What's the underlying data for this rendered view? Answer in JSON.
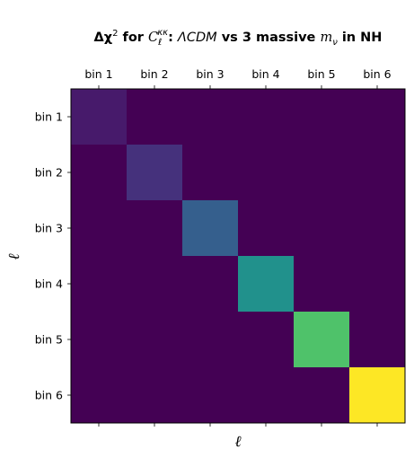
{
  "chart_data": {
    "type": "heatmap",
    "title": {
      "prefix": "Δχ",
      "exp": "2",
      "for": " for ",
      "C": "C",
      "C_sub": "ℓ",
      "C_sup": "κκ",
      "colon": ": ",
      "model": "ΛCDM",
      "vs": " vs 3 massive ",
      "m": "m",
      "m_sub": "ν",
      "tail": " in NH"
    },
    "xlabel": "ℓ",
    "ylabel": "ℓ",
    "x_categories": [
      "bin 1",
      "bin 2",
      "bin 3",
      "bin 4",
      "bin 5",
      "bin 6"
    ],
    "y_categories": [
      "bin 1",
      "bin 2",
      "bin 3",
      "bin 4",
      "bin 5",
      "bin 6"
    ],
    "x_tick_position": "top",
    "colormap": "viridis",
    "vmin": 0,
    "vmax": 1,
    "values": [
      [
        0.07,
        0,
        0,
        0,
        0,
        0
      ],
      [
        0,
        0.14,
        0,
        0,
        0,
        0
      ],
      [
        0,
        0,
        0.3,
        0,
        0,
        0
      ],
      [
        0,
        0,
        0,
        0.5,
        0,
        0
      ],
      [
        0,
        0,
        0,
        0,
        0.72,
        0
      ],
      [
        0,
        0,
        0,
        0,
        0,
        1.0
      ]
    ]
  }
}
